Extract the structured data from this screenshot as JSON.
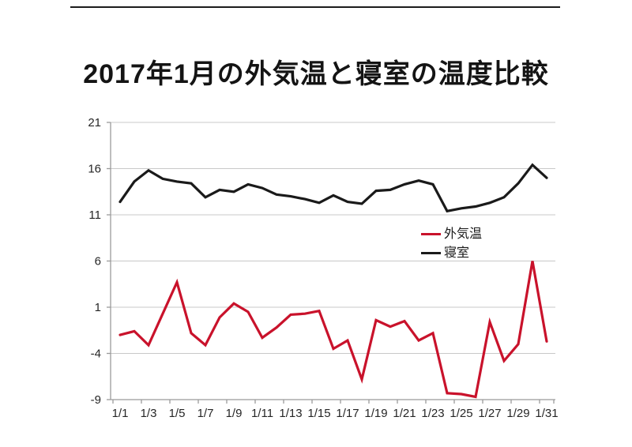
{
  "page": {
    "title": "2017年1月の外気温と寝室の温度比較"
  },
  "legend": {
    "items": [
      {
        "label": "外気温",
        "color": "#c9122b"
      },
      {
        "label": "寝室",
        "color": "#1a1a1a"
      }
    ]
  },
  "colors": {
    "grid": "#c8c8c8",
    "axis": "#9b9b9b",
    "tick": "#262626",
    "background": "#ffffff"
  },
  "chart_data": {
    "type": "line",
    "title": "2017年1月の外気温と寝室の温度比較",
    "xlabel": "",
    "ylabel": "",
    "ylim": [
      -9,
      21
    ],
    "yticks": [
      21,
      16,
      11,
      6,
      1,
      -4,
      -9
    ],
    "grid": true,
    "legend_position": "middle-right",
    "x_label_every": 2,
    "categories": [
      "1/1",
      "1/2",
      "1/3",
      "1/4",
      "1/5",
      "1/6",
      "1/7",
      "1/8",
      "1/9",
      "1/10",
      "1/11",
      "1/12",
      "1/13",
      "1/14",
      "1/15",
      "1/16",
      "1/17",
      "1/18",
      "1/19",
      "1/20",
      "1/21",
      "1/22",
      "1/23",
      "1/24",
      "1/25",
      "1/26",
      "1/27",
      "1/28",
      "1/29",
      "1/30",
      "1/31"
    ],
    "series": [
      {
        "name": "外気温",
        "color": "#c9122b",
        "values": [
          -2.0,
          -1.6,
          -3.1,
          0.3,
          3.7,
          -1.8,
          -3.1,
          -0.1,
          1.4,
          0.5,
          -2.3,
          -1.2,
          0.2,
          0.3,
          0.6,
          -3.5,
          -2.6,
          -6.8,
          -0.4,
          -1.1,
          -0.5,
          -2.6,
          -1.8,
          -8.3,
          -8.4,
          -8.7,
          -0.6,
          -4.8,
          -3.0,
          6.0,
          -2.7
        ]
      },
      {
        "name": "寝室",
        "color": "#1a1a1a",
        "values": [
          12.4,
          14.6,
          15.8,
          14.9,
          14.6,
          14.4,
          12.9,
          13.7,
          13.5,
          14.3,
          13.9,
          13.2,
          13.0,
          12.7,
          12.3,
          13.1,
          12.4,
          12.2,
          13.6,
          13.7,
          14.3,
          14.7,
          14.3,
          11.4,
          11.7,
          11.9,
          12.3,
          12.9,
          14.4,
          16.4,
          15.0
        ]
      }
    ]
  }
}
